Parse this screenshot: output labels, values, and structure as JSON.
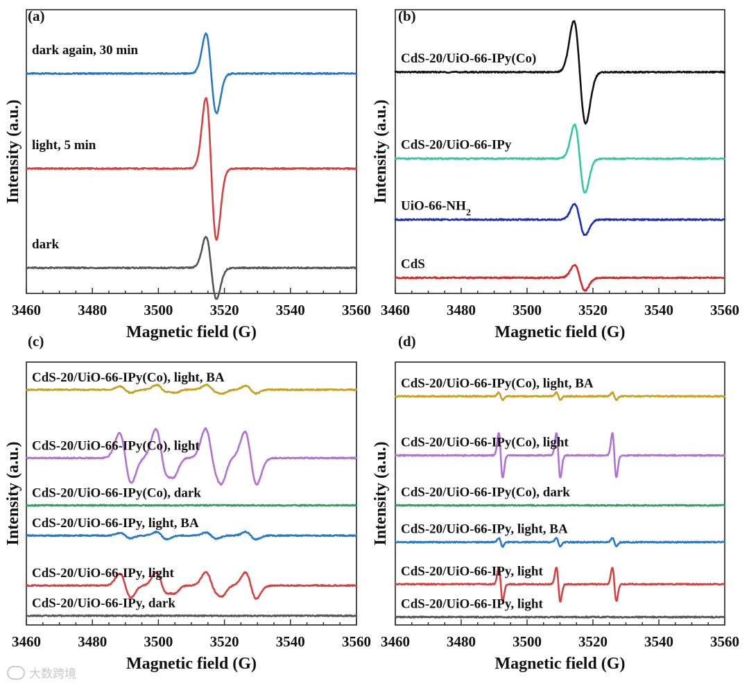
{
  "watermark": "大数跨境",
  "chart_data": [
    {
      "id": "a",
      "type": "line",
      "panel_label": "(a)",
      "xlabel": "Magnetic field (G)",
      "ylabel": "Intensity (a.u.)",
      "xlim": [
        3460,
        3560
      ],
      "xticks": [
        3460,
        3480,
        3500,
        3520,
        3540,
        3560
      ],
      "ylim": [
        0,
        1
      ],
      "series": [
        {
          "name": "dark again, 30 min",
          "color": "#2878c8",
          "baseline": 0.775,
          "signals": [
            {
              "center": 3516.0,
              "amp": 0.14,
              "width": 1.6
            }
          ]
        },
        {
          "name": "light, 5 min",
          "color": "#d84040",
          "baseline": 0.44,
          "signals": [
            {
              "center": 3516.0,
              "amp": 0.25,
              "width": 1.6
            }
          ]
        },
        {
          "name": "dark",
          "color": "#555555",
          "baseline": 0.09,
          "signals": [
            {
              "center": 3516.0,
              "amp": 0.11,
              "width": 1.6
            }
          ]
        }
      ]
    },
    {
      "id": "b",
      "type": "line",
      "panel_label": "(b)",
      "xlabel": "Magnetic field (G)",
      "ylabel": "Intensity (a.u.)",
      "xlim": [
        3460,
        3560
      ],
      "xticks": [
        3460,
        3480,
        3500,
        3520,
        3540,
        3560
      ],
      "ylim": [
        0,
        1
      ],
      "series": [
        {
          "name": "CdS-20/UiO-66-IPy(Co)",
          "color": "#111111",
          "baseline": 0.78,
          "signals": [
            {
              "center": 3516.0,
              "amp": 0.18,
              "width": 1.8
            }
          ]
        },
        {
          "name": "CdS-20/UiO-66-IPy",
          "color": "#30c8a0",
          "baseline": 0.475,
          "signals": [
            {
              "center": 3516.0,
              "amp": 0.12,
              "width": 1.6
            }
          ]
        },
        {
          "name": "UiO-66-NH",
          "subscript": "2",
          "color": "#1a2cc0",
          "baseline": 0.26,
          "signals": [
            {
              "center": 3516.0,
              "amp": 0.055,
              "width": 1.6
            }
          ]
        },
        {
          "name": "CdS",
          "color": "#d82828",
          "baseline": 0.055,
          "signals": [
            {
              "center": 3516.0,
              "amp": 0.045,
              "width": 1.6
            }
          ]
        }
      ]
    },
    {
      "id": "c",
      "type": "line",
      "panel_label": "(c)",
      "xlabel": "Magnetic field (G)",
      "ylabel": "Intensity (a.u.)",
      "xlim": [
        3460,
        3560
      ],
      "xticks": [
        3460,
        3480,
        3500,
        3520,
        3540,
        3560
      ],
      "ylim": [
        0,
        1
      ],
      "series": [
        {
          "name": "CdS-20/UiO-66-IPy(Co), light, BA",
          "color": "#c8a020",
          "baseline": 0.895,
          "signals": [
            {
              "center": 3490,
              "amp": 0.012,
              "width": 1.6
            },
            {
              "center": 3501,
              "amp": 0.018,
              "width": 1.6
            },
            {
              "center": 3504,
              "amp": 0.01,
              "width": 1.4
            },
            {
              "center": 3516,
              "amp": 0.018,
              "width": 1.6
            },
            {
              "center": 3518.5,
              "amp": 0.01,
              "width": 1.4
            },
            {
              "center": 3528,
              "amp": 0.014,
              "width": 1.6
            }
          ]
        },
        {
          "name": "CdS-20/UiO-66-IPy(Co), light",
          "color": "#b070d8",
          "baseline": 0.635,
          "signals": [
            {
              "center": 3490,
              "amp": 0.095,
              "width": 1.8
            },
            {
              "center": 3501,
              "amp": 0.11,
              "width": 1.8
            },
            {
              "center": 3504,
              "amp": 0.04,
              "width": 1.4
            },
            {
              "center": 3516,
              "amp": 0.11,
              "width": 1.8
            },
            {
              "center": 3518.5,
              "amp": 0.045,
              "width": 1.4
            },
            {
              "center": 3528,
              "amp": 0.1,
              "width": 1.8
            }
          ]
        },
        {
          "name": "CdS-20/UiO-66-IPy(Co), dark",
          "color": "#30a060",
          "baseline": 0.455,
          "signals": []
        },
        {
          "name": "CdS-20/UiO-66-IPy, light, BA",
          "color": "#2878c8",
          "baseline": 0.34,
          "signals": [
            {
              "center": 3490,
              "amp": 0.01,
              "width": 1.6
            },
            {
              "center": 3501,
              "amp": 0.014,
              "width": 1.6
            },
            {
              "center": 3516,
              "amp": 0.012,
              "width": 1.6
            },
            {
              "center": 3528,
              "amp": 0.014,
              "width": 1.6
            }
          ]
        },
        {
          "name": "CdS-20/UiO-66-IPy, light",
          "color": "#d84040",
          "baseline": 0.15,
          "signals": [
            {
              "center": 3490,
              "amp": 0.045,
              "width": 1.7
            },
            {
              "center": 3501,
              "amp": 0.05,
              "width": 1.7
            },
            {
              "center": 3504,
              "amp": 0.02,
              "width": 1.4
            },
            {
              "center": 3516,
              "amp": 0.05,
              "width": 1.7
            },
            {
              "center": 3518.5,
              "amp": 0.022,
              "width": 1.4
            },
            {
              "center": 3528,
              "amp": 0.05,
              "width": 1.7
            }
          ]
        },
        {
          "name": "CdS-20/UiO-66-IPy, dark",
          "color": "#555555",
          "baseline": 0.035,
          "signals": []
        }
      ]
    },
    {
      "id": "d",
      "type": "line",
      "panel_label": "(d)",
      "xlabel": "Magnetic field (G)",
      "ylabel": "Intensity (a.u.)",
      "xlim": [
        3460,
        3560
      ],
      "xticks": [
        3460,
        3480,
        3500,
        3520,
        3540,
        3560
      ],
      "ylim": [
        0,
        1
      ],
      "series": [
        {
          "name": "CdS-20/UiO-66-IPy(Co),  light, BA",
          "color": "#c8a020",
          "baseline": 0.87,
          "signals": [
            {
              "center": 3492,
              "amp": 0.014,
              "width": 0.6
            },
            {
              "center": 3509.5,
              "amp": 0.014,
              "width": 0.6
            },
            {
              "center": 3526.5,
              "amp": 0.014,
              "width": 0.6
            }
          ]
        },
        {
          "name": "CdS-20/UiO-66-IPy(Co), light",
          "color": "#b070d8",
          "baseline": 0.645,
          "signals": [
            {
              "center": 3492,
              "amp": 0.085,
              "width": 0.6
            },
            {
              "center": 3509.5,
              "amp": 0.085,
              "width": 0.6
            },
            {
              "center": 3526.5,
              "amp": 0.085,
              "width": 0.6
            }
          ]
        },
        {
          "name": "CdS-20/UiO-66-IPy(Co), dark",
          "color": "#30a060",
          "baseline": 0.455,
          "signals": []
        },
        {
          "name": "CdS-20/UiO-66-IPy,  light, BA",
          "color": "#2878c8",
          "baseline": 0.315,
          "signals": [
            {
              "center": 3492,
              "amp": 0.016,
              "width": 0.6
            },
            {
              "center": 3509.5,
              "amp": 0.016,
              "width": 0.6
            },
            {
              "center": 3526.5,
              "amp": 0.016,
              "width": 0.6
            }
          ]
        },
        {
          "name": "CdS-20/UiO-66-IPy,  light",
          "color": "#d84040",
          "baseline": 0.155,
          "signals": [
            {
              "center": 3492,
              "amp": 0.065,
              "width": 0.6
            },
            {
              "center": 3509.5,
              "amp": 0.065,
              "width": 0.6
            },
            {
              "center": 3526.5,
              "amp": 0.065,
              "width": 0.6
            }
          ]
        },
        {
          "name": "CdS-20/UiO-66-IPy,  light",
          "color": "#555555",
          "baseline": 0.03,
          "signals": []
        }
      ]
    }
  ]
}
